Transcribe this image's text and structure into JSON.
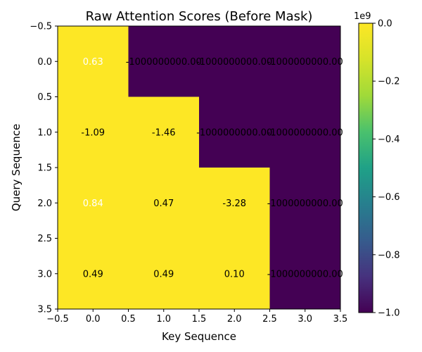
{
  "chart_data": {
    "type": "heatmap",
    "title": "Raw Attention Scores (Before Mask)",
    "xlabel": "Key Sequence",
    "ylabel": "Query Sequence",
    "xlim": [
      -0.5,
      3.5
    ],
    "ylim": [
      3.5,
      -0.5
    ],
    "x_ticks": [
      "−0.5",
      "0.0",
      "0.5",
      "1.0",
      "1.5",
      "2.0",
      "2.5",
      "3.0",
      "3.5"
    ],
    "y_ticks": [
      "−0.5",
      "0.0",
      "0.5",
      "1.0",
      "1.5",
      "2.0",
      "2.5",
      "3.0",
      "3.5"
    ],
    "values": [
      [
        0.63,
        -1000000000.0,
        -1000000000.0,
        -1000000000.0
      ],
      [
        -1.09,
        -1.46,
        -1000000000.0,
        -1000000000.0
      ],
      [
        0.84,
        0.47,
        -3.28,
        -1000000000.0
      ],
      [
        0.49,
        0.49,
        0.1,
        -1000000000.0
      ]
    ],
    "cell_labels": [
      [
        "0.63",
        "-1000000000.00",
        "-1000000000.00",
        "-1000000000.00"
      ],
      [
        "-1.09",
        "-1.46",
        "-1000000000.00",
        "-1000000000.00"
      ],
      [
        "0.84",
        "0.47",
        "-3.28",
        "-1000000000.00"
      ],
      [
        "0.49",
        "0.49",
        "0.10",
        "-1000000000.00"
      ]
    ],
    "colormap": "viridis",
    "colorbar": {
      "range": [
        -1.0,
        0.0
      ],
      "multiplier": "1e9",
      "ticks": [
        "0.0",
        "−0.2",
        "−0.4",
        "−0.6",
        "−0.8",
        "−1.0"
      ]
    },
    "colors": {
      "high": "#fde725",
      "low": "#440154",
      "label_on_high": "#000000",
      "label_on_high_alt": "#ffffff",
      "label_on_low": "#000000"
    }
  }
}
